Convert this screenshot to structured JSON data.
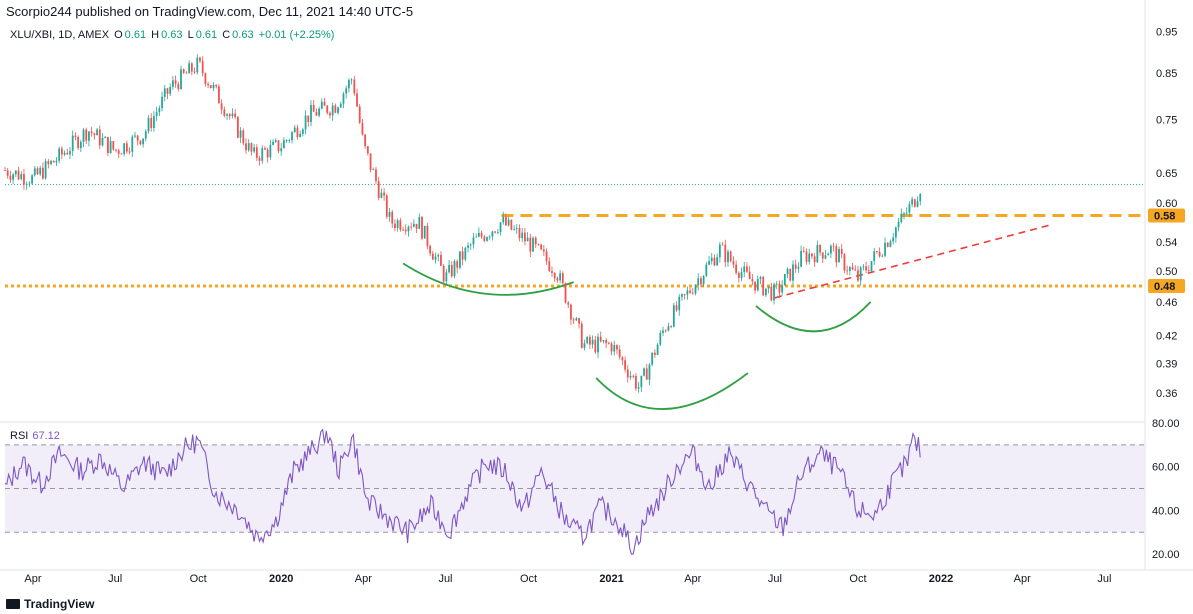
{
  "header": {
    "publisher_line": "Scorpio244 published on TradingView.com, Dec 11, 2021 14:40 UTC-5"
  },
  "legend": {
    "symbol": "XLU/XBI, 1D, AMEX",
    "open_label": "O",
    "open": "0.61",
    "high_label": "H",
    "high": "0.63",
    "low_label": "L",
    "low": "0.61",
    "close_label": "C",
    "close": "0.63",
    "change": "+0.01 (+2.25%)"
  },
  "rsi_legend": {
    "label": "RSI",
    "value": "67.12"
  },
  "footer": {
    "brand": "TradingView"
  },
  "colors": {
    "up": "#26a69a",
    "down": "#ef5350",
    "orange": "#f5a623",
    "green": "#2ea043",
    "red_dash": "#ef3b3b",
    "rsi": "#7e57c2",
    "rsi_band": "#ede7f6"
  },
  "chart_data": [
    {
      "type": "candlestick",
      "price_scale": "log",
      "ylim": [
        0.335,
        0.98
      ],
      "y_tick_labels": [
        "0.95",
        "0.85",
        "0.75",
        "0.65",
        "0.60",
        "0.54",
        "0.50",
        "0.46",
        "0.42",
        "0.39",
        "0.36"
      ],
      "x_tick_labels": [
        "Apr",
        "Jul",
        "Oct",
        "2020",
        "Apr",
        "Jul",
        "Oct",
        "2021",
        "Apr",
        "Jul",
        "Oct",
        "2022",
        "Apr",
        "Jul"
      ],
      "x_tick_bold": [
        false,
        false,
        false,
        true,
        false,
        false,
        false,
        true,
        false,
        false,
        false,
        true,
        false,
        false
      ],
      "price_badges": [
        {
          "value": 0.58,
          "label": "0.58"
        },
        {
          "value": 0.48,
          "label": "0.48"
        }
      ],
      "last_price": 0.63,
      "close_path": [
        [
          "2019-03-01",
          0.655
        ],
        [
          "2019-04-01",
          0.64
        ],
        [
          "2019-05-01",
          0.68
        ],
        [
          "2019-06-01",
          0.73
        ],
        [
          "2019-07-01",
          0.69
        ],
        [
          "2019-08-01",
          0.72
        ],
        [
          "2019-09-01",
          0.82
        ],
        [
          "2019-10-01",
          0.87
        ],
        [
          "2019-11-01",
          0.77
        ],
        [
          "2019-12-01",
          0.68
        ],
        [
          "2020-01-01",
          0.7
        ],
        [
          "2020-02-01",
          0.76
        ],
        [
          "2020-03-01",
          0.78
        ],
        [
          "2020-03-20",
          0.84
        ],
        [
          "2020-04-01",
          0.7
        ],
        [
          "2020-05-01",
          0.57
        ],
        [
          "2020-06-01",
          0.57
        ],
        [
          "2020-07-01",
          0.49
        ],
        [
          "2020-08-01",
          0.54
        ],
        [
          "2020-09-01",
          0.57
        ],
        [
          "2020-10-01",
          0.54
        ],
        [
          "2020-11-01",
          0.5
        ],
        [
          "2020-12-01",
          0.41
        ],
        [
          "2021-01-01",
          0.41
        ],
        [
          "2021-02-01",
          0.365
        ],
        [
          "2021-03-01",
          0.43
        ],
        [
          "2021-04-01",
          0.48
        ],
        [
          "2021-05-01",
          0.53
        ],
        [
          "2021-06-01",
          0.49
        ],
        [
          "2021-07-01",
          0.47
        ],
        [
          "2021-08-01",
          0.52
        ],
        [
          "2021-09-01",
          0.53
        ],
        [
          "2021-10-01",
          0.49
        ],
        [
          "2021-11-01",
          0.54
        ],
        [
          "2021-12-01",
          0.6
        ],
        [
          "2021-12-10",
          0.63
        ]
      ],
      "horizontal_levels": [
        {
          "name": "neckline-upper",
          "value": 0.58,
          "from": "2020-09-01",
          "to": "2022-09-30",
          "style": "dashed-orange"
        },
        {
          "name": "support-lower",
          "value": 0.48,
          "from": "2019-03-01",
          "to": "2022-09-30",
          "style": "dotted-orange"
        }
      ],
      "trendline": {
        "from": [
          "2021-07-01",
          0.465
        ],
        "to": [
          "2022-05-01",
          0.565
        ],
        "style": "dashed-red"
      },
      "arcs": [
        {
          "name": "left-shoulder",
          "from": [
            "2020-05-15",
            0.51
          ],
          "bottom": [
            "2020-08-15",
            0.47
          ],
          "to": [
            "2020-11-20",
            0.485
          ]
        },
        {
          "name": "head",
          "from": [
            "2020-12-15",
            0.375
          ],
          "bottom": [
            "2021-03-01",
            0.345
          ],
          "to": [
            "2021-06-01",
            0.38
          ]
        },
        {
          "name": "right-shoulder",
          "from": [
            "2021-06-10",
            0.455
          ],
          "bottom": [
            "2021-08-15",
            0.425
          ],
          "to": [
            "2021-10-15",
            0.46
          ]
        }
      ]
    },
    {
      "type": "line",
      "name": "RSI",
      "ylim": [
        15,
        80
      ],
      "y_tick_labels": [
        "80.00",
        "60.00",
        "40.00",
        "20.00"
      ],
      "bands": [
        70,
        50,
        30
      ],
      "points": [
        [
          "2019-03-01",
          50
        ],
        [
          "2019-03-20",
          62
        ],
        [
          "2019-04-10",
          52
        ],
        [
          "2019-05-01",
          66
        ],
        [
          "2019-05-25",
          58
        ],
        [
          "2019-06-15",
          64
        ],
        [
          "2019-07-10",
          50
        ],
        [
          "2019-08-01",
          62
        ],
        [
          "2019-08-25",
          56
        ],
        [
          "2019-09-15",
          68
        ],
        [
          "2019-10-01",
          72
        ],
        [
          "2019-10-20",
          48
        ],
        [
          "2019-11-15",
          40
        ],
        [
          "2019-12-05",
          28
        ],
        [
          "2019-12-25",
          34
        ],
        [
          "2020-01-15",
          58
        ],
        [
          "2020-02-05",
          68
        ],
        [
          "2020-02-20",
          76
        ],
        [
          "2020-03-05",
          58
        ],
        [
          "2020-03-20",
          74
        ],
        [
          "2020-04-05",
          44
        ],
        [
          "2020-04-30",
          36
        ],
        [
          "2020-05-20",
          30
        ],
        [
          "2020-06-15",
          42
        ],
        [
          "2020-07-05",
          30
        ],
        [
          "2020-07-25",
          48
        ],
        [
          "2020-08-15",
          62
        ],
        [
          "2020-09-05",
          58
        ],
        [
          "2020-09-25",
          40
        ],
        [
          "2020-10-15",
          58
        ],
        [
          "2020-11-10",
          36
        ],
        [
          "2020-11-30",
          28
        ],
        [
          "2020-12-20",
          42
        ],
        [
          "2021-01-10",
          34
        ],
        [
          "2021-01-25",
          22
        ],
        [
          "2021-02-10",
          38
        ],
        [
          "2021-02-25",
          46
        ],
        [
          "2021-03-15",
          60
        ],
        [
          "2021-04-01",
          66
        ],
        [
          "2021-04-20",
          50
        ],
        [
          "2021-05-10",
          66
        ],
        [
          "2021-05-30",
          54
        ],
        [
          "2021-06-20",
          40
        ],
        [
          "2021-07-10",
          32
        ],
        [
          "2021-07-30",
          56
        ],
        [
          "2021-08-20",
          66
        ],
        [
          "2021-09-10",
          58
        ],
        [
          "2021-09-30",
          40
        ],
        [
          "2021-10-20",
          38
        ],
        [
          "2021-11-10",
          54
        ],
        [
          "2021-11-25",
          62
        ],
        [
          "2021-12-01",
          72
        ],
        [
          "2021-12-10",
          67.12
        ]
      ]
    }
  ]
}
